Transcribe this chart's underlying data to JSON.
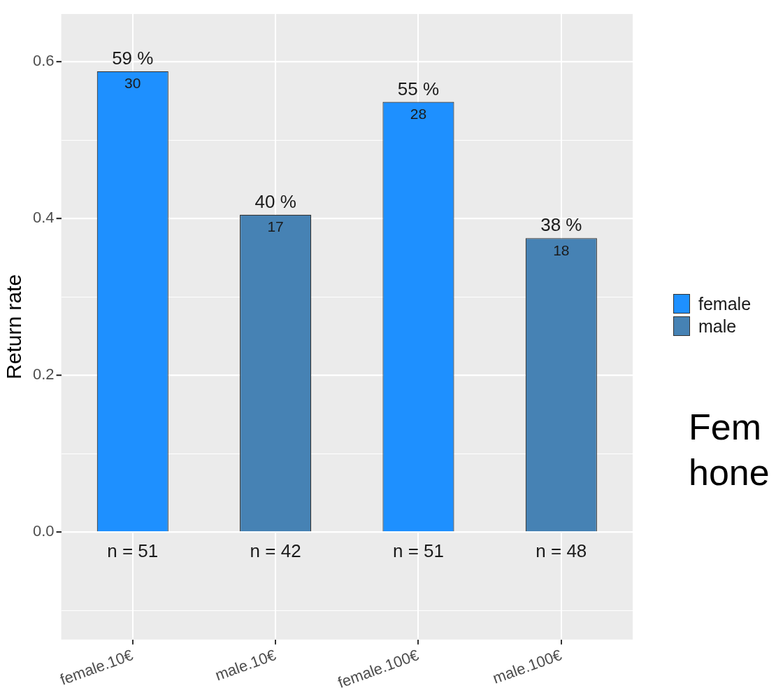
{
  "chart_data": {
    "type": "bar",
    "ylabel": "Return rate",
    "categories": [
      "female.10€",
      "male.10€",
      "female.100€",
      "male.100€"
    ],
    "series": [
      {
        "name": "female",
        "color": "#1e90ff",
        "values": [
          0.588,
          null,
          0.549,
          null
        ],
        "value_labels": [
          "59 %",
          null,
          "55 %",
          null
        ]
      },
      {
        "name": "male",
        "color": "#4682b4",
        "values": [
          null,
          0.405,
          null,
          0.375
        ],
        "value_labels": [
          null,
          "40 %",
          null,
          "38 %"
        ]
      }
    ],
    "ylim": [
      -0.137,
      0.661
    ],
    "yticks": [
      {
        "value": -0.1,
        "label": null
      },
      {
        "value": 0,
        "label": "0.0"
      },
      {
        "value": 0.1,
        "label": null
      },
      {
        "value": 0.2,
        "label": "0.2"
      },
      {
        "value": 0.3,
        "label": null
      },
      {
        "value": 0.4,
        "label": "0.4"
      },
      {
        "value": 0.5,
        "label": null
      },
      {
        "value": 0.6,
        "label": "0.6"
      }
    ],
    "grid": true,
    "legend": "right",
    "annotations": [
      {
        "text": "30",
        "x": "female.10€",
        "y": 0.588
      },
      {
        "text": "17",
        "x": "male.10€",
        "y": 0.405
      },
      {
        "text": "28",
        "x": "female.100€",
        "y": 0.549
      },
      {
        "text": "18",
        "x": "male.100€",
        "y": 0.375
      },
      {
        "text": "n = 51",
        "x": "female.10€",
        "y": 0
      },
      {
        "text": "n = 42",
        "x": "male.10€",
        "y": 0
      },
      {
        "text": "n = 51",
        "x": "female.100€",
        "y": 0
      },
      {
        "text": "n = 48",
        "x": "male.100€",
        "y": 0
      },
      "Fem",
      "hone"
    ]
  }
}
